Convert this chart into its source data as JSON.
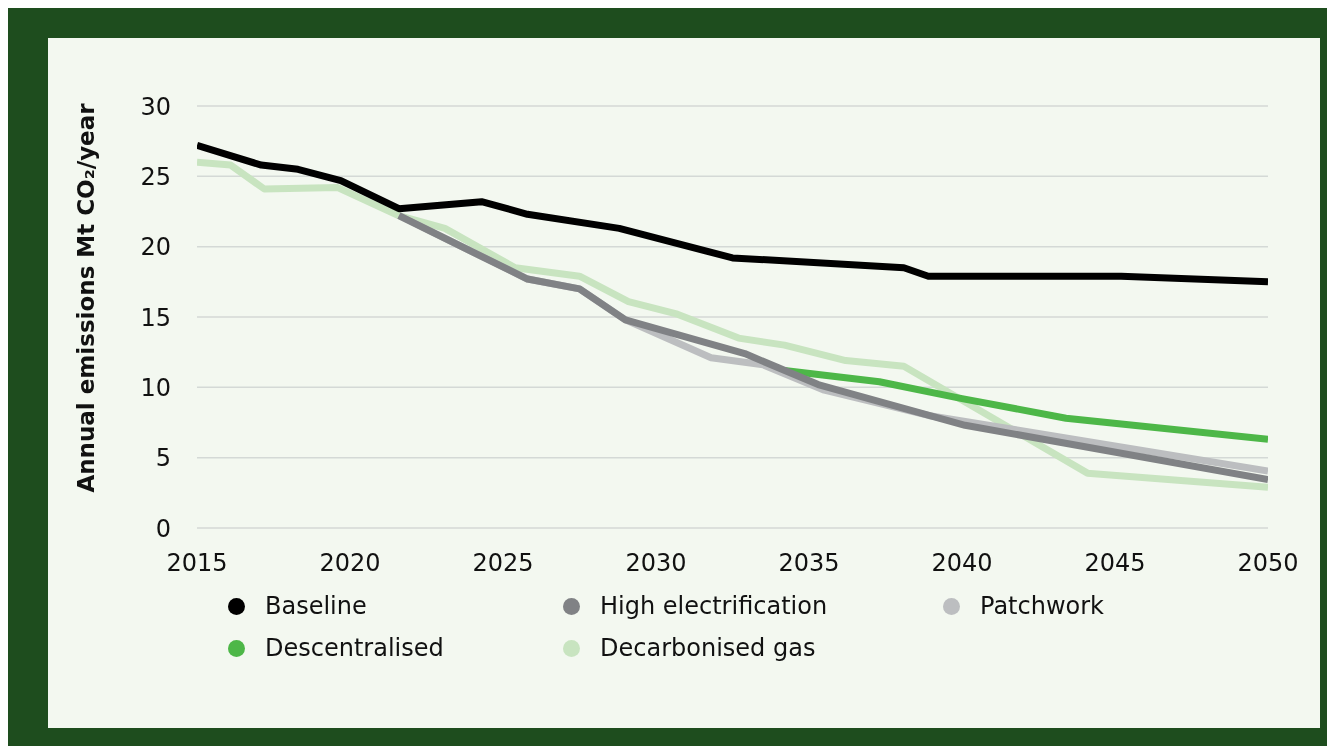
{
  "chart_data": {
    "type": "line",
    "ylabel": "Annual emissions Mt CO₂/year",
    "xlim": [
      2015,
      2050
    ],
    "xticks": [
      2015,
      2020,
      2025,
      2030,
      2035,
      2040,
      2045,
      2050
    ],
    "ylim": [
      0,
      30
    ],
    "yticks": [
      0,
      5,
      10,
      15,
      20,
      25,
      30
    ],
    "grid": "y",
    "legend": "bottom",
    "marker": "none",
    "line_style": "solid",
    "series": [
      {
        "name": "Baseline",
        "color": "#000000",
        "x": [
          2015,
          2017.1,
          2018.3,
          2019.7,
          2021.6,
          2024.3,
          2025.8,
          2028.8,
          2032.5,
          2038.1,
          2038.9,
          2045.2,
          2050
        ],
        "values": [
          27.2,
          25.8,
          25.5,
          24.7,
          22.7,
          23.2,
          22.3,
          21.3,
          19.2,
          18.5,
          17.9,
          17.9,
          17.5
        ]
      },
      {
        "name": "High electrification",
        "color": "#808285",
        "x": [
          2021.6,
          2025.8,
          2027.5,
          2029,
          2031.6,
          2032.9,
          2035.3,
          2040.1,
          2050
        ],
        "values": [
          22.2,
          17.7,
          17.0,
          14.8,
          13.2,
          12.4,
          10.2,
          7.3,
          3.45
        ]
      },
      {
        "name": "Patchwork",
        "color": "#bcbec0",
        "x": [
          2021.6,
          2025.8,
          2027.5,
          2029,
          2031.8,
          2033.5,
          2035.5,
          2038.9,
          2050
        ],
        "values": [
          22.2,
          17.7,
          17.0,
          14.8,
          12.1,
          11.6,
          9.8,
          8.0,
          4.05
        ]
      },
      {
        "name": "Descentralised",
        "color": "#4db748",
        "x": [
          2034.2,
          2037.3,
          2040,
          2043.4,
          2050
        ],
        "values": [
          11.2,
          10.4,
          9.2,
          7.8,
          6.3
        ]
      },
      {
        "name": "Decarbonised gas",
        "color": "#c8e4c0",
        "x": [
          2015,
          2016.1,
          2017.2,
          2019.6,
          2021.6,
          2023.1,
          2025.4,
          2027.5,
          2029.1,
          2030.7,
          2032.7,
          2034.2,
          2036.2,
          2038.1,
          2044.1,
          2050
        ],
        "values": [
          26.0,
          25.8,
          24.1,
          24.2,
          22.2,
          21.3,
          18.5,
          17.9,
          16.1,
          15.2,
          13.5,
          13.0,
          11.9,
          11.5,
          3.9,
          2.9
        ]
      }
    ]
  }
}
